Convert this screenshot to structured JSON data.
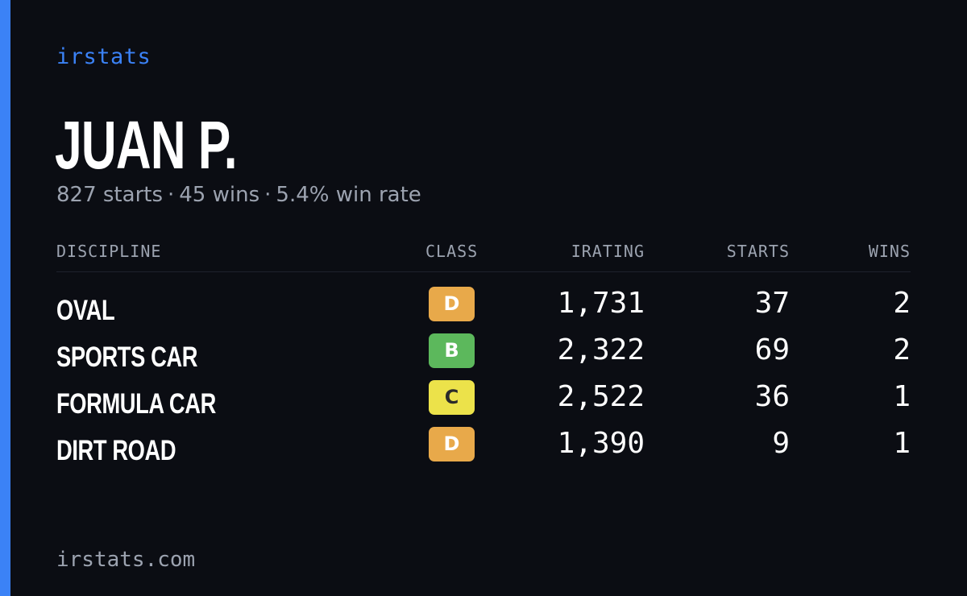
{
  "brand": "irstats",
  "driver": {
    "name": "JUAN P.",
    "starts": "827 starts",
    "wins": "45 wins",
    "win_rate": "5.4% win rate",
    "separator": "·"
  },
  "table": {
    "headers": {
      "discipline": "DISCIPLINE",
      "class": "CLASS",
      "irating": "IRATING",
      "starts": "STARTS",
      "wins": "WINS"
    },
    "rows": [
      {
        "discipline": "OVAL",
        "class": "D",
        "class_color": "#e8a94a",
        "class_text_color": "#ffffff",
        "irating": "1,731",
        "starts": "37",
        "wins": "2"
      },
      {
        "discipline": "SPORTS CAR",
        "class": "B",
        "class_color": "#5cb85c",
        "class_text_color": "#ffffff",
        "irating": "2,322",
        "starts": "69",
        "wins": "2"
      },
      {
        "discipline": "FORMULA CAR",
        "class": "C",
        "class_color": "#ece24a",
        "class_text_color": "#2a2a2a",
        "irating": "2,522",
        "starts": "36",
        "wins": "1"
      },
      {
        "discipline": "DIRT ROAD",
        "class": "D",
        "class_color": "#e8a94a",
        "class_text_color": "#ffffff",
        "irating": "1,390",
        "starts": "9",
        "wins": "1"
      }
    ]
  },
  "footer": "irstats.com",
  "colors": {
    "accent": "#3b82f6",
    "background": "#0b0d13",
    "muted": "#9ca3b0"
  }
}
